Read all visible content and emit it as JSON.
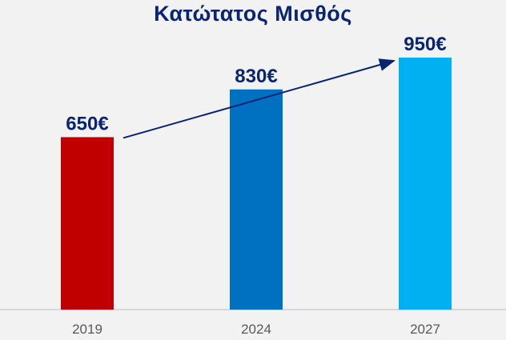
{
  "chart_data": {
    "type": "bar",
    "title": "Κατώτατος Μισθός",
    "categories": [
      "2019",
      "2024",
      "2027"
    ],
    "values": [
      650,
      830,
      950
    ],
    "value_labels": [
      "650€",
      "830€",
      "950€"
    ],
    "bar_colors": [
      "#c00000",
      "#0070c0",
      "#00b0f0"
    ],
    "xlabel": "",
    "ylabel": "",
    "ylim": [
      0,
      1000
    ],
    "grid": false,
    "legend": "none",
    "trend_arrow": {
      "from": "2019",
      "to": "2027",
      "color": "#0a2472"
    }
  }
}
